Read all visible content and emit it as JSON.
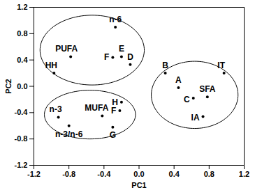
{
  "chart_data": {
    "type": "scatter",
    "xlabel": "PC1",
    "ylabel": "PC2",
    "xlim": [
      -1.2,
      1.2
    ],
    "ylim": [
      -1.2,
      1.2
    ],
    "xticks": [
      -1.2,
      -0.8,
      -0.4,
      {
        "value": 0,
        "label": "0.0"
      },
      0.4,
      0.8,
      1.2
    ],
    "yticks": [
      -1.2,
      -0.8,
      -0.4,
      {
        "value": 0,
        "label": "0.0"
      },
      0.4,
      0.8,
      1.2
    ],
    "color": "#000000",
    "series": [
      {
        "labels": [
          "n-6",
          "PUFA",
          "HH",
          "F",
          "E",
          "D"
        ],
        "x": [
          -0.27,
          -0.78,
          -0.97,
          -0.3,
          -0.2,
          -0.1
        ],
        "y": [
          0.9,
          0.45,
          0.2,
          0.44,
          0.45,
          0.33
        ]
      },
      {
        "labels": [
          "n-3",
          "MUFA",
          "H",
          "F",
          "n-3/n-6",
          "G"
        ],
        "x": [
          -0.92,
          -0.42,
          -0.2,
          -0.22,
          -0.8,
          -0.3
        ],
        "y": [
          -0.47,
          -0.45,
          -0.24,
          -0.37,
          -0.6,
          -0.62
        ]
      },
      {
        "labels": [
          "B",
          "A",
          "IT",
          "SFA",
          "C",
          "IA"
        ],
        "x": [
          0.3,
          0.45,
          0.97,
          0.78,
          0.62,
          0.73
        ],
        "y": [
          0.2,
          -0.02,
          0.2,
          -0.16,
          -0.18,
          -0.46
        ]
      }
    ]
  }
}
